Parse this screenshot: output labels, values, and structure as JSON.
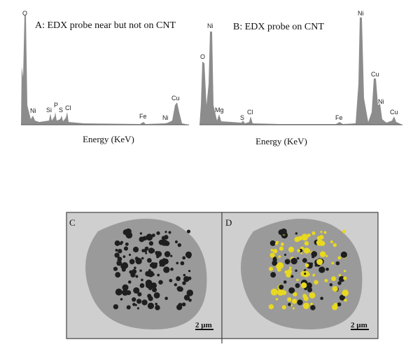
{
  "panels": [
    {
      "title": "A: EDX probe near but not on CNT",
      "x_label": "Energy (KeV)",
      "peaks": [
        "O",
        "Ni",
        "Si",
        "P",
        "S",
        "Cl",
        "Fe",
        "Ni",
        "Cu"
      ]
    },
    {
      "title": "B: EDX probe on CNT",
      "x_label": "Energy (KeV)",
      "peaks": [
        "Ni",
        "O",
        "Mg",
        "S",
        "Cl",
        "Fe",
        "Ni",
        "Cu",
        "Ni",
        "Cu"
      ]
    }
  ],
  "images": [
    {
      "label": "C",
      "scale": "2 µm"
    },
    {
      "label": "D",
      "scale": "2 µm"
    }
  ]
}
